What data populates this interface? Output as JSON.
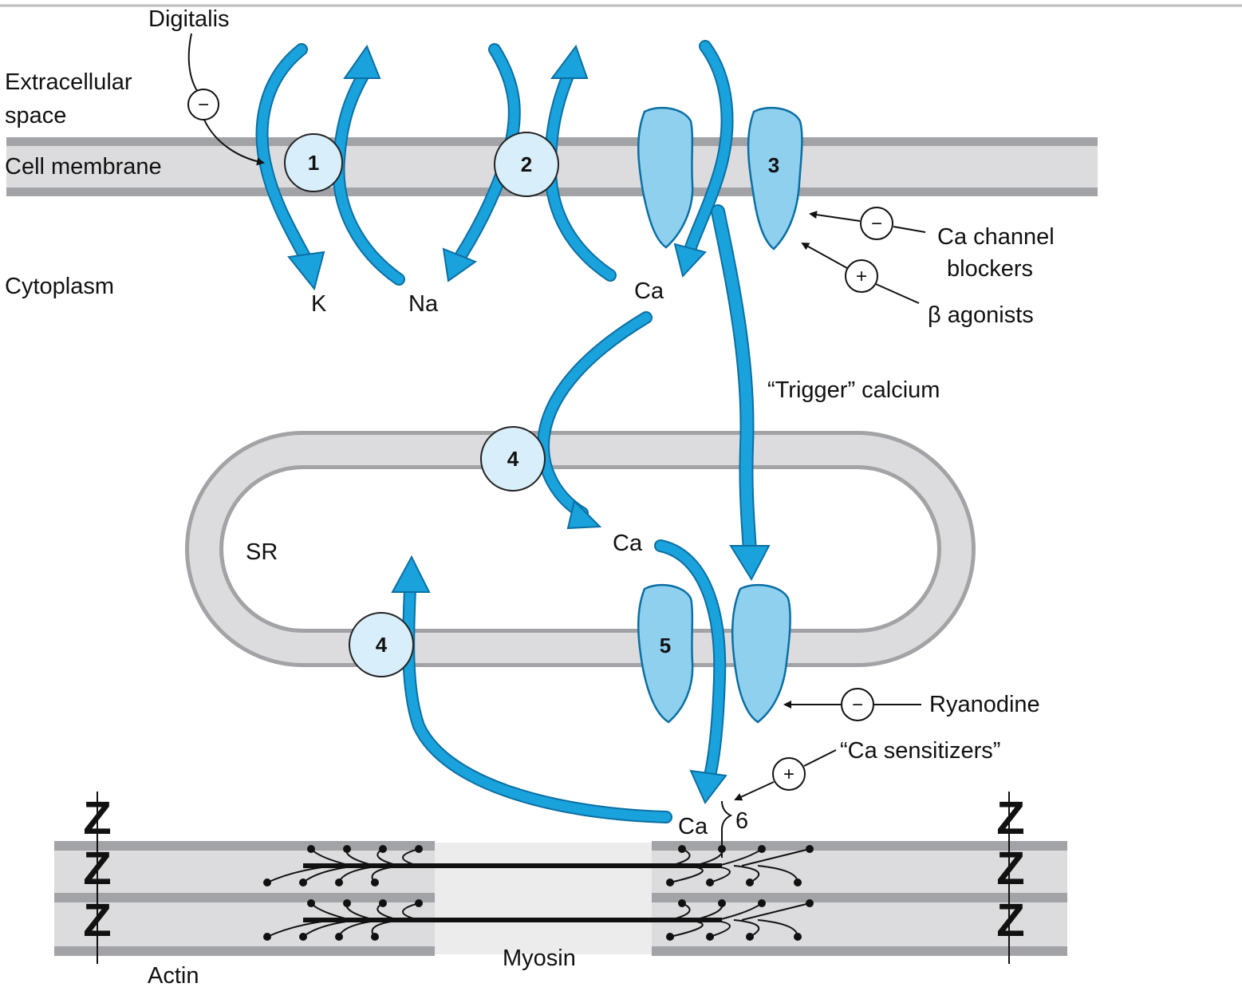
{
  "colors": {
    "arrow": "#1aa2dc",
    "arrow_stroke": "#0b6fa3",
    "protein_fill": "#d8eefa",
    "channel_fill": "#8fd0ef",
    "membrane": "#dcdcde",
    "membrane_edge": "#a2a3a6",
    "text": "#111111"
  },
  "regions": {
    "extracellular": "Extracellular\nspace",
    "membrane": "Cell membrane",
    "cytoplasm": "Cytoplasm",
    "sr": "SR"
  },
  "ions": {
    "k": "K",
    "na": "Na",
    "ca_cyto": "Ca",
    "ca_sr": "Ca",
    "ca_myo": "Ca"
  },
  "proteins": {
    "p1": "1",
    "p2": "2",
    "p3": "3",
    "p4_upper": "4",
    "p4_lower": "4",
    "p5": "5",
    "p6": "6"
  },
  "drugs": {
    "digitalis": "Digitalis",
    "ca_blockers": "Ca channel\nblockers",
    "beta_agonists": "β agonists",
    "ryanodine": "Ryanodine",
    "ca_sensitizers": "“Ca sensitizers”"
  },
  "signs": {
    "minus": "−",
    "plus": "+"
  },
  "annotations": {
    "trigger": "“Trigger” calcium"
  },
  "sarcomere": {
    "z": "Z",
    "actin": "Actin",
    "myosin": "Myosin"
  }
}
